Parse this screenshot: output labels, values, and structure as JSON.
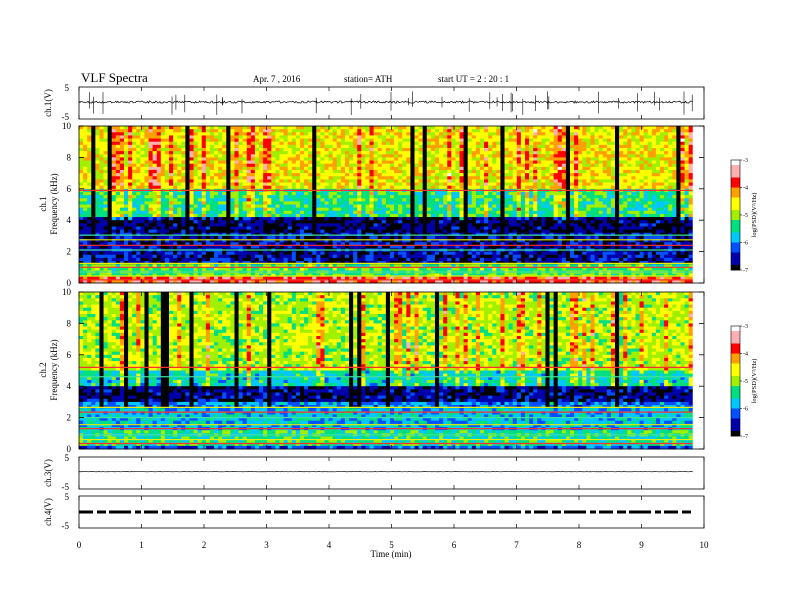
{
  "header": {
    "title": "VLF  Spectra",
    "date": "Apr. 7  , 2016",
    "station": "station= ATH",
    "start": "start  UT  =   2  : 20 : 1"
  },
  "chart_data": {
    "type": "heatmap",
    "x_axis": {
      "label": "Time  (min)",
      "range": [
        0,
        10
      ],
      "ticks": [
        "0",
        "1",
        "2",
        "3",
        "4",
        "5",
        "6",
        "7",
        "8",
        "9",
        "10"
      ],
      "data_end": 9.82
    },
    "panels": [
      {
        "id": "ch1-waveform",
        "ylabel": "ch.1(V)",
        "yticks": [
          "5",
          "-5"
        ],
        "ylim": [
          -5,
          5
        ],
        "trace_level": 0.3,
        "trace_color": "#000000"
      },
      {
        "id": "ch1-spectrogram",
        "ylabel": "ch.1\nFrequency (kHz)",
        "ylabel_lines": [
          "ch.1",
          "Frequency  (kHz)"
        ],
        "ylim": [
          0,
          10
        ],
        "yticks": [
          "0",
          "2",
          "4",
          "6",
          "8",
          "10"
        ],
        "colorbar": {
          "label": "log(PSD)(V²/Hz)",
          "ticks": [
            "-3",
            "-4",
            "-5",
            "-6",
            "-7"
          ],
          "range": [
            -7,
            -3
          ]
        },
        "band_profile": [
          {
            "f": [
              0,
              0.35
            ],
            "level": -3.8
          },
          {
            "f": [
              0.35,
              1.3
            ],
            "level": -5.2
          },
          {
            "f": [
              1.3,
              3.3
            ],
            "level": -6.6
          },
          {
            "f": [
              3.3,
              4.2
            ],
            "level": -6.8
          },
          {
            "f": [
              4.2,
              6.0
            ],
            "level": -5.4
          },
          {
            "f": [
              6.0,
              10.0
            ],
            "level": -4.6
          }
        ],
        "tone_lines_khz": [
          0.2,
          0.45,
          0.7,
          1.0,
          1.25,
          2.1,
          2.4,
          2.75,
          3.05,
          5.9
        ]
      },
      {
        "id": "ch2-spectrogram",
        "ylabel": "ch.2\nFrequency (kHz)",
        "ylabel_lines": [
          "ch.2",
          "Frequency  (kHz)"
        ],
        "ylim": [
          0,
          10
        ],
        "yticks": [
          "0",
          "2",
          "4",
          "6",
          "8",
          "10"
        ],
        "colorbar": {
          "label": "log(PSD)(V²/Hz)",
          "ticks": [
            "-3",
            "-4",
            "-5",
            "-6",
            "-7"
          ],
          "range": [
            -7,
            -3
          ]
        },
        "band_profile": [
          {
            "f": [
              0,
              0.3
            ],
            "level": -6.2
          },
          {
            "f": [
              0.3,
              1.2
            ],
            "level": -5.4
          },
          {
            "f": [
              1.2,
              2.6
            ],
            "level": -5.8
          },
          {
            "f": [
              2.6,
              3.0
            ],
            "level": -6.0
          },
          {
            "f": [
              3.0,
              4.1
            ],
            "level": -6.7
          },
          {
            "f": [
              4.1,
              5.0
            ],
            "level": -5.6
          },
          {
            "f": [
              5.0,
              10.0
            ],
            "level": -4.9
          }
        ],
        "tone_lines_khz": [
          0.35,
          0.6,
          0.9,
          1.3,
          1.55,
          2.0,
          2.35,
          2.65,
          4.6,
          5.2
        ]
      },
      {
        "id": "ch3-waveform",
        "ylabel": "ch.3(V)",
        "yticks": [
          "5",
          "-5"
        ],
        "ylim": [
          -5,
          5
        ],
        "trace_level": 0.4,
        "trace_color": "#000000"
      },
      {
        "id": "ch4-waveform",
        "ylabel": "ch.4(V)",
        "yticks": [
          "5",
          "-5"
        ],
        "ylim": [
          -5,
          5
        ],
        "trace_level": 0.0,
        "trace_color": "#000000"
      }
    ],
    "colormap": [
      "#000000",
      "#0000aa",
      "#0050ff",
      "#00c8ff",
      "#00e080",
      "#a0f000",
      "#ffff00",
      "#ffa000",
      "#ff0000",
      "#ffb0b0",
      "#ffffff"
    ]
  }
}
